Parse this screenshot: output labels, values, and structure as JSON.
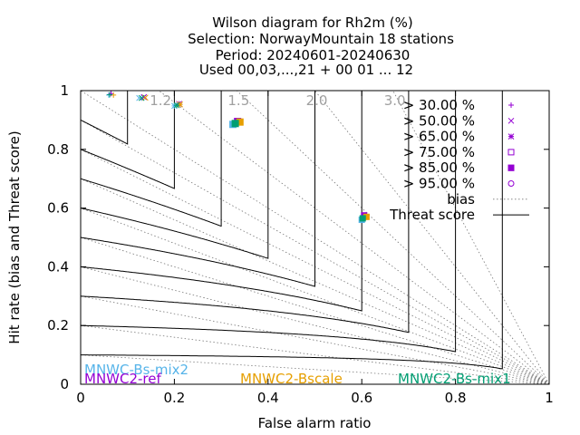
{
  "chart_data": {
    "type": "scatter",
    "title_lines": [
      "Wilson diagram  for Rh2m (%)",
      "Selection: NorwayMountain     18 stations",
      "Period: 20240601-20240630",
      "Used 00,03,...,21 + 00 01 ... 12"
    ],
    "xlabel": "False alarm ratio",
    "ylabel": "Hit rate (bias and Threat score)",
    "xlim": [
      0,
      1
    ],
    "ylim": [
      0,
      1
    ],
    "x_ticks": [
      0,
      0.2,
      0.4,
      0.6,
      0.8,
      1
    ],
    "y_ticks": [
      0,
      0.2,
      0.4,
      0.6,
      0.8,
      1
    ],
    "x_tick_labels": [
      "0",
      "0.2",
      "0.4",
      "0.6",
      "0.8",
      "1"
    ],
    "y_tick_labels": [
      "0",
      "0.2",
      "0.4",
      "0.6",
      "0.8",
      "1"
    ],
    "bias_values": [
      1.2,
      1.5,
      2.0,
      3.0
    ],
    "bias_labels": [
      "1.2",
      "1.5",
      "2.0",
      "3.0"
    ],
    "threat_scores": [
      0.1,
      0.2,
      0.3,
      0.4,
      0.5,
      0.6,
      0.7,
      0.8,
      0.9
    ],
    "legend_position": "top-right",
    "legend": [
      {
        "label": "> 30.00 %",
        "symbol": "plus"
      },
      {
        "label": "> 50.00 %",
        "symbol": "cross"
      },
      {
        "label": "> 65.00 %",
        "symbol": "star"
      },
      {
        "label": "> 75.00 %",
        "symbol": "open-square"
      },
      {
        "label": "> 85.00 %",
        "symbol": "filled-square"
      },
      {
        "label": "> 95.00 %",
        "symbol": "open-circle"
      },
      {
        "label": "bias",
        "symbol": "dotted-line"
      },
      {
        "label": "Threat score",
        "symbol": "solid-line"
      }
    ],
    "series": [
      {
        "name": "MNWC-Bs-mix2",
        "color": "#56b4e9",
        "points": [
          [
            0.06,
            0.985
          ],
          [
            0.125,
            0.975
          ],
          [
            0.2,
            0.948
          ],
          [
            0.325,
            0.885
          ],
          [
            0.6,
            0.56
          ]
        ]
      },
      {
        "name": "MNWC2-ref",
        "color": "#9400d3",
        "points": [
          [
            0.065,
            0.99
          ],
          [
            0.135,
            0.978
          ],
          [
            0.21,
            0.955
          ],
          [
            0.335,
            0.895
          ],
          [
            0.605,
            0.575
          ]
        ]
      },
      {
        "name": "MNWC2-Bscale",
        "color": "#e69f00",
        "points": [
          [
            0.07,
            0.985
          ],
          [
            0.138,
            0.976
          ],
          [
            0.212,
            0.953
          ],
          [
            0.34,
            0.893
          ],
          [
            0.61,
            0.57
          ]
        ]
      },
      {
        "name": "MNWC2-Bs-mix1",
        "color": "#009e73",
        "points": [
          [
            0.062,
            0.986
          ],
          [
            0.13,
            0.975
          ],
          [
            0.205,
            0.95
          ],
          [
            0.33,
            0.888
          ],
          [
            0.602,
            0.565
          ]
        ]
      }
    ]
  }
}
